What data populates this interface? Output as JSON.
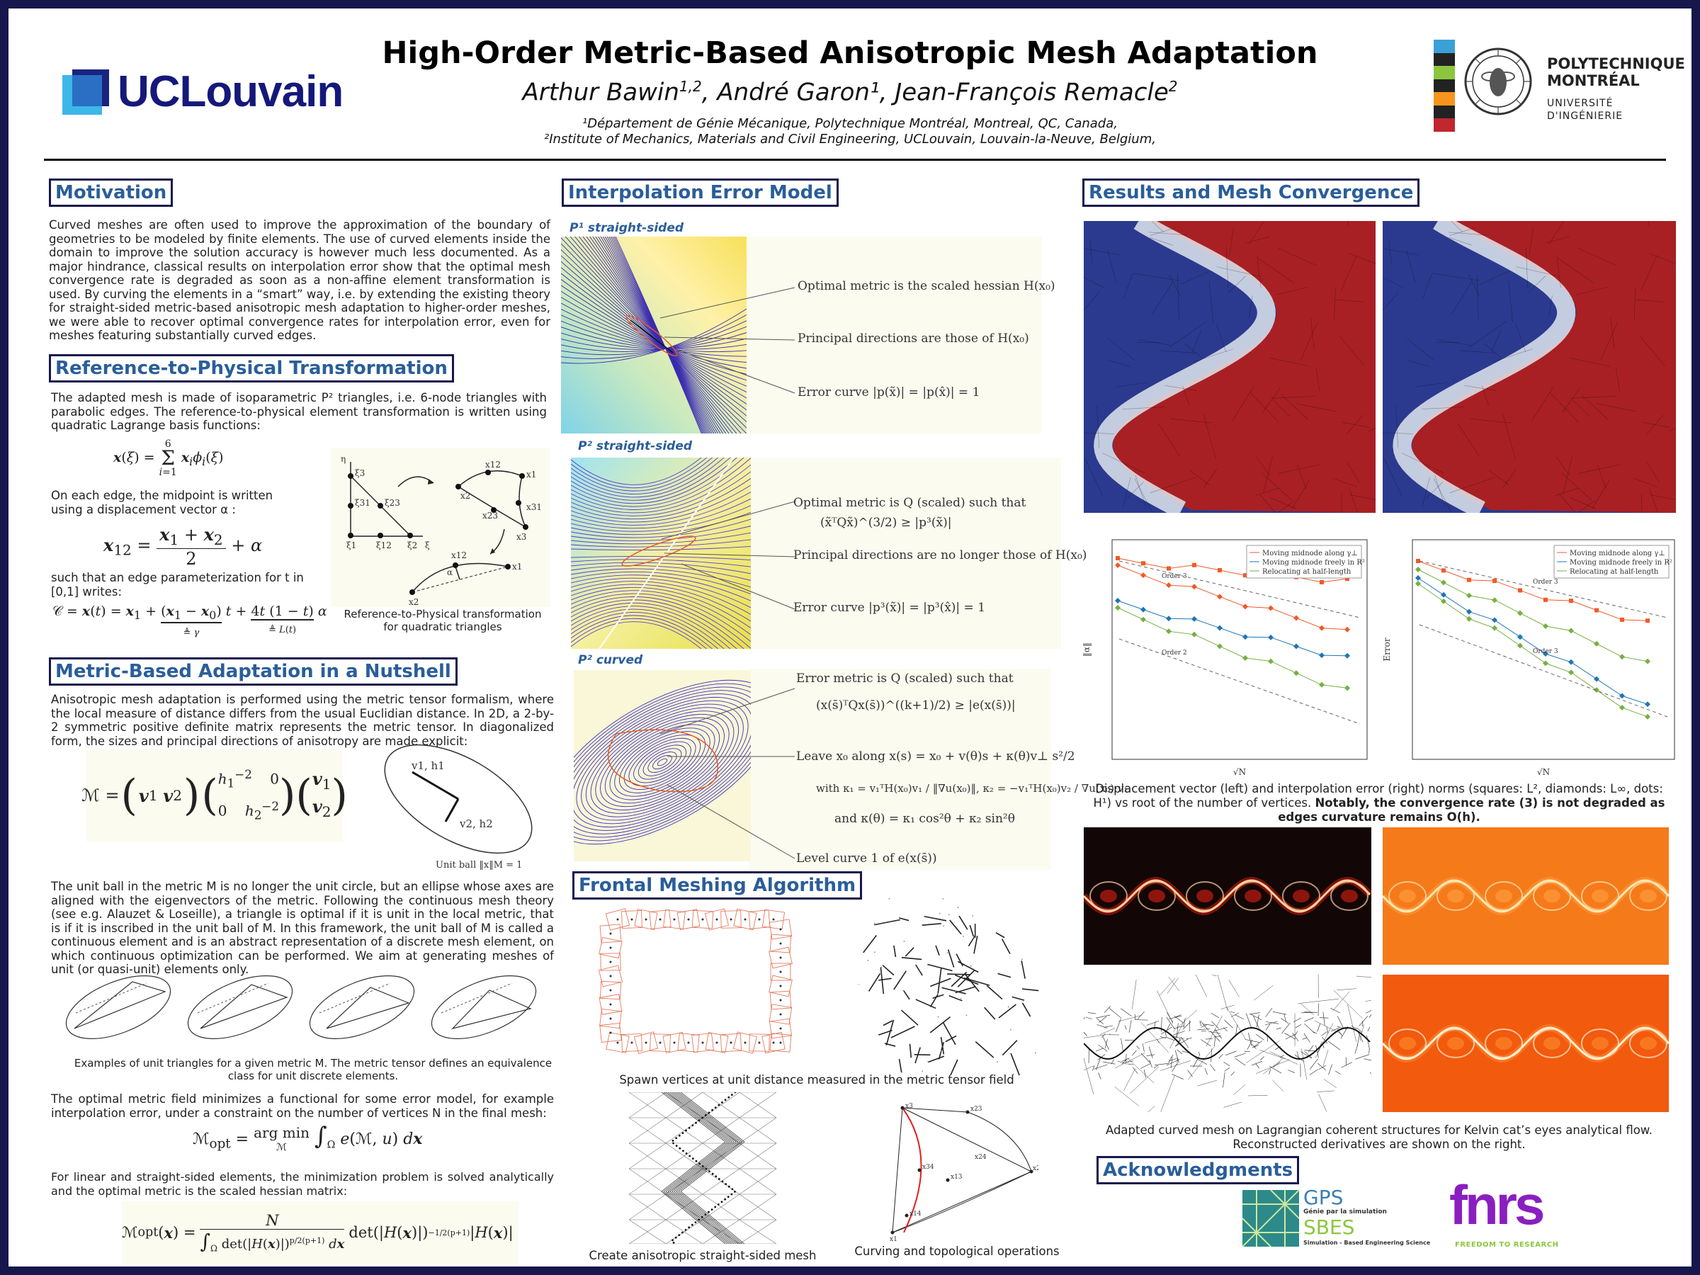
{
  "header": {
    "title": "High-Order Metric-Based Anisotropic Mesh Adaptation",
    "authors": "Arthur Bawin1,2, André Garon1, Jean-François Remacle2",
    "affiliation_1": "¹Département de Génie Mécanique, Polytechnique Montréal, Montreal, QC, Canada,",
    "affiliation_2": "²Institute of Mechanics, Materials and Civil Engineering, UCLouvain, Louvain-la-Neuve, Belgium,",
    "left_logo": "UCLouvain",
    "right_logo_line1": "POLYTECHNIQUE",
    "right_logo_line2": "MONTRÉAL",
    "right_logo_line3": "UNIVERSITÉ",
    "right_logo_line4": "D'INGÉNIERIE",
    "right_logo_colors": [
      "#3aa0d8",
      "#222222",
      "#8cc63f",
      "#222222",
      "#f7941d",
      "#222222",
      "#c1272d"
    ]
  },
  "motivation": {
    "heading": "Motivation",
    "text": "Curved meshes are often used to improve the approximation of the boundary of geometries to be modeled by finite elements. The use of curved elements inside the domain to improve the solution accuracy is however much less documented. As a major hindrance, classical results on interpolation error show that the optimal mesh convergence rate is degraded as soon as a non-affine element transformation is used. By curving the elements in a “smart” way, i.e. by extending the existing theory for straight-sided metric-based anisotropic mesh adaptation to higher-order meshes, we were able to recover optimal convergence rates for interpolation error, even for meshes featuring substantially curved edges."
  },
  "ref2phys": {
    "heading": "Reference-to-Physical Transformation",
    "intro": "The adapted mesh is made of isoparametric P² triangles, i.e. 6-node triangles with parabolic edges.  The reference-to-physical element transformation is written using quadratic Lagrange basis functions:",
    "edge_text": "On each edge, the midpoint is written using a displacement vector α :",
    "param_text": "such that an edge parameterization for t in [0,1] writes:",
    "fig_caption": "Reference-to-Physical transformation for quadratic triangles"
  },
  "metric": {
    "heading": "Metric-Based Adaptation in a Nutshell",
    "intro": "Anisotropic mesh adaptation is performed using the metric tensor formalism, where the local measure of distance differs from the usual Euclidian distance. In 2D, a 2-by-2 symmetric positive definite matrix represents the metric tensor. In diagonalized form, the sizes and principal directions of anisotropy are made explicit:",
    "unit_ball_label": "Unit ball ‖x‖M = 1",
    "unit_ball_text": "The unit ball in the metric M is no longer the unit circle, but an ellipse whose axes are aligned with the eigenvectors of the metric. Following the continuous mesh theory (see e.g. Alauzet & Loseille), a triangle is optimal if it is unit in the local metric, that is if it is inscribed in the unit ball of M. In this framework, the unit ball of M is called a continuous element and is an abstract representation of a discrete mesh element, on which continuous optimization can be performed. We aim at generating meshes of unit (or quasi-unit) elements only.",
    "examples_caption": "Examples of unit triangles for a given metric M. The metric tensor defines an equivalence class for unit discrete elements.",
    "functional_text": "The optimal metric field minimizes a functional for some error model, for example interpolation error, under a constraint on the number of vertices N in the final mesh:",
    "linear_text": "For linear and straight-sided elements, the minimization problem is solved analytically and the optimal metric is the scaled hessian matrix:"
  },
  "interp": {
    "heading": "Interpolation Error Model",
    "p1_label": "P¹ straight-sided",
    "p1_notes": [
      "Optimal metric is the scaled hessian H(x₀)",
      "Principal directions are those of H(x₀)",
      "Error curve |p(x̃)| = |p(x̂)| = 1"
    ],
    "p2s_label": "P² straight-sided",
    "p2s_notes": [
      "Optimal metric is Q (scaled) such that",
      "(x̃ᵀQx̃)^(3/2) ≥ |p³(x̃)|",
      "Principal directions are no longer those of H(x₀)",
      "Error curve |p³(x̃)| = |p³(x̂)| = 1"
    ],
    "p2c_label": "P² curved",
    "p2c_notes": [
      "Error metric is Q (scaled) such that",
      "(x(s̄)ᵀQx(s̄))^((k+1)/2) ≥ |e(x(s̄))|",
      "Leave x₀ along x(s) = x₀ + v(θ)s + κ(θ)v⊥ s²/2",
      "with κ₁ = v₁ᵀH(x₀)v₁ / ‖∇u(x₀)‖,   κ₂ = −v₁ᵀH(x₀)v₂ / ∇u(x₀)·v₁",
      "and κ(θ) = κ₁ cos²θ + κ₂ sin²θ",
      "Level curve 1 of e(x(s̄))"
    ]
  },
  "frontal": {
    "heading": "Frontal Meshing Algorithm",
    "caption_spawn": "Spawn vertices at unit distance measured in the metric tensor field",
    "caption_create": "Create anisotropic straight-sided mesh",
    "caption_curve": "Curving and topological operations"
  },
  "results": {
    "heading": "Results and Mesh Convergence",
    "caption_plots": "Displacement vector (left) and interpolation error (right) norms (squares: L², diamonds: L∞, dots: H¹) vs root of the number of vertices.",
    "caption_bold": "Notably, the convergence rate (3) is not degraded as edges curvature remains O(h).",
    "caption_kelvin": "Adapted curved mesh on Lagrangian coherent structures for Kelvin cat’s eyes analytical flow. Reconstructed derivatives are shown on the right."
  },
  "ack": {
    "heading": "Acknowledgments",
    "gps_line1": "GPS",
    "gps_line2": "Génie par la simulation",
    "sbes_line1": "SBES",
    "sbes_line2": "Simulation - Based Engineering Science",
    "fnrs": "fnrs",
    "fnrs_tag": "FREEDOM TO RESEARCH"
  },
  "chart_data": [
    {
      "type": "line",
      "title": "",
      "xlabel": "√N",
      "ylabel": "‖α‖",
      "legend_position": "top-right",
      "series": [
        {
          "name": "Moving midnode along γ⊥",
          "color": "#f05a28"
        },
        {
          "name": "Moving midnode freely in R²",
          "color": "#1f77b4"
        },
        {
          "name": "Relocating at half-length",
          "color": "#76b041"
        }
      ],
      "annotations": [
        "Order 3",
        "Order 2"
      ]
    },
    {
      "type": "line",
      "title": "",
      "xlabel": "√N",
      "ylabel": "Error",
      "legend_position": "top-right",
      "series": [
        {
          "name": "Moving midnode along γ⊥",
          "color": "#f05a28"
        },
        {
          "name": "Moving midnode freely in R²",
          "color": "#1f77b4"
        },
        {
          "name": "Relocating at half-length",
          "color": "#76b041"
        }
      ],
      "annotations": [
        "Order 3",
        "Order 3"
      ]
    }
  ]
}
